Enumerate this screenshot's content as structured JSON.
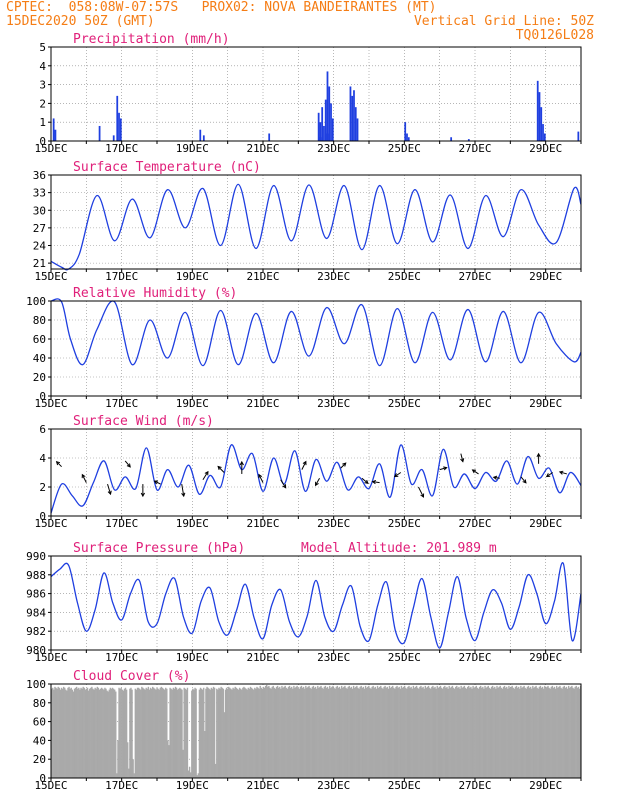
{
  "header": {
    "line1": "CPTEC:  058:08W-07:57S   PROX02: NOVA BANDEIRANTES (MT)",
    "line2": "15DEC2020 50Z (GMT)",
    "grid_note": "Vertical Grid Line: 50Z",
    "code": "TQ0126L028"
  },
  "colors": {
    "header": "#f57d15",
    "panel_title": "#e0207a",
    "series": "#1f3fe0",
    "cloud": "#a9a9a9",
    "arrow": "#000000"
  },
  "chart_data": [
    {
      "id": "precip",
      "type": "bar",
      "title": "Precipitation (mm/h)",
      "ylim": [
        0,
        5
      ],
      "yticks": [
        0,
        1,
        2,
        3,
        4,
        5
      ],
      "xlabels": [
        "15DEC",
        "17DEC",
        "19DEC",
        "21DEC",
        "23DEC",
        "25DEC",
        "27DEC",
        "29DEC"
      ],
      "bars": [
        {
          "day": 0.05,
          "value": 1.2
        },
        {
          "day": 0.1,
          "value": 0.6
        },
        {
          "day": 1.35,
          "value": 0.8
        },
        {
          "day": 1.75,
          "value": 0.3
        },
        {
          "day": 1.85,
          "value": 2.4
        },
        {
          "day": 1.9,
          "value": 1.5
        },
        {
          "day": 1.95,
          "value": 1.2
        },
        {
          "day": 4.2,
          "value": 0.6
        },
        {
          "day": 4.3,
          "value": 0.3
        },
        {
          "day": 6.15,
          "value": 0.4
        },
        {
          "day": 7.8,
          "value": 0.4
        },
        {
          "day": 7.6,
          "value": 0.2
        },
        {
          "day": 7.55,
          "value": 1.5
        },
        {
          "day": 7.6,
          "value": 1.0
        },
        {
          "day": 7.65,
          "value": 1.8
        },
        {
          "day": 7.7,
          "value": 0.8
        },
        {
          "day": 7.75,
          "value": 2.2
        },
        {
          "day": 7.8,
          "value": 3.7
        },
        {
          "day": 7.85,
          "value": 2.9
        },
        {
          "day": 7.9,
          "value": 2.0
        },
        {
          "day": 7.95,
          "value": 1.2
        },
        {
          "day": 8.45,
          "value": 2.9
        },
        {
          "day": 8.5,
          "value": 2.4
        },
        {
          "day": 8.55,
          "value": 2.7
        },
        {
          "day": 8.6,
          "value": 1.8
        },
        {
          "day": 8.65,
          "value": 1.2
        },
        {
          "day": 10.0,
          "value": 1.0
        },
        {
          "day": 10.05,
          "value": 0.4
        },
        {
          "day": 10.1,
          "value": 0.2
        },
        {
          "day": 11.3,
          "value": 0.2
        },
        {
          "day": 11.8,
          "value": 0.1
        },
        {
          "day": 13.75,
          "value": 3.2
        },
        {
          "day": 13.8,
          "value": 2.6
        },
        {
          "day": 13.85,
          "value": 1.8
        },
        {
          "day": 13.9,
          "value": 0.9
        },
        {
          "day": 13.95,
          "value": 0.4
        },
        {
          "day": 14.9,
          "value": 0.5
        }
      ]
    },
    {
      "id": "temp",
      "type": "line",
      "title": "Surface Temperature (nC)",
      "ylim": [
        20,
        36
      ],
      "yticks": [
        21,
        24,
        27,
        30,
        33,
        36
      ],
      "xlabels": [
        "15DEC",
        "17DEC",
        "19DEC",
        "21DEC",
        "23DEC",
        "25DEC",
        "27DEC",
        "29DEC"
      ],
      "x": [
        0.0,
        0.3,
        0.5,
        0.8,
        1.3,
        1.8,
        2.3,
        2.8,
        3.3,
        3.8,
        4.3,
        4.8,
        5.3,
        5.8,
        6.3,
        6.8,
        7.3,
        7.8,
        8.3,
        8.8,
        9.3,
        9.8,
        10.3,
        10.8,
        11.3,
        11.8,
        12.3,
        12.8,
        13.3,
        13.8,
        14.3,
        14.8,
        15.0
      ],
      "y": [
        21.3,
        20.3,
        20.0,
        22.5,
        32.5,
        24.8,
        31.9,
        25.3,
        33.5,
        27.0,
        33.7,
        24.0,
        34.4,
        23.5,
        34.2,
        24.8,
        34.3,
        25.2,
        34.2,
        23.3,
        34.2,
        24.3,
        33.5,
        24.6,
        32.6,
        23.5,
        32.5,
        25.5,
        33.5,
        27.5,
        24.5,
        33.7,
        31.0
      ]
    },
    {
      "id": "rh",
      "type": "line",
      "title": "Relative Humidity (%)",
      "ylim": [
        0,
        100
      ],
      "yticks": [
        0,
        20,
        40,
        60,
        80,
        100
      ],
      "xlabels": [
        "15DEC",
        "17DEC",
        "19DEC",
        "21DEC",
        "23DEC",
        "25DEC",
        "27DEC",
        "29DEC"
      ],
      "x": [
        0.0,
        0.3,
        0.55,
        0.9,
        1.3,
        1.8,
        2.3,
        2.8,
        3.3,
        3.8,
        4.3,
        4.8,
        5.3,
        5.8,
        6.3,
        6.8,
        7.3,
        7.8,
        8.3,
        8.8,
        9.3,
        9.8,
        10.3,
        10.8,
        11.3,
        11.8,
        12.3,
        12.8,
        13.3,
        13.8,
        14.3,
        14.8,
        15.0
      ],
      "y": [
        100,
        99,
        60,
        33,
        70,
        99,
        33,
        80,
        40,
        88,
        32,
        90,
        33,
        87,
        35,
        89,
        42,
        93,
        55,
        96,
        32,
        92,
        35,
        88,
        38,
        91,
        36,
        89,
        35,
        88,
        55,
        36,
        46
      ]
    },
    {
      "id": "wind",
      "type": "line",
      "title": "Surface Wind (m/s)",
      "ylim": [
        0,
        6
      ],
      "yticks": [
        0,
        2,
        4,
        6
      ],
      "xlabels": [
        "15DEC",
        "17DEC",
        "19DEC",
        "21DEC",
        "23DEC",
        "25DEC",
        "27DEC",
        "29DEC"
      ],
      "x": [
        0.0,
        0.3,
        0.6,
        0.9,
        1.2,
        1.5,
        1.8,
        2.1,
        2.4,
        2.7,
        3.0,
        3.3,
        3.6,
        3.9,
        4.2,
        4.5,
        4.8,
        5.1,
        5.4,
        5.7,
        6.0,
        6.3,
        6.6,
        6.9,
        7.2,
        7.5,
        7.8,
        8.1,
        8.4,
        8.7,
        9.0,
        9.3,
        9.6,
        9.9,
        10.2,
        10.5,
        10.8,
        11.1,
        11.4,
        11.7,
        12.0,
        12.3,
        12.6,
        12.9,
        13.2,
        13.5,
        13.8,
        14.1,
        14.4,
        14.7,
        15.0
      ],
      "y": [
        0.2,
        2.2,
        1.4,
        0.7,
        2.3,
        3.8,
        1.8,
        2.7,
        1.9,
        4.7,
        1.8,
        3.2,
        2.0,
        3.5,
        1.5,
        2.8,
        2.0,
        4.9,
        3.2,
        4.3,
        1.7,
        4.0,
        2.2,
        4.5,
        1.7,
        3.9,
        2.4,
        3.7,
        1.8,
        2.7,
        1.9,
        3.6,
        1.3,
        4.9,
        2.2,
        3.2,
        1.4,
        4.6,
        2.0,
        2.9,
        1.9,
        3.0,
        2.4,
        3.8,
        2.2,
        4.1,
        2.6,
        3.3,
        1.6,
        3.0,
        2.1
      ],
      "arrows": [
        {
          "day": 0.3,
          "value": 3.4,
          "dx": -5,
          "dy": -5
        },
        {
          "day": 1.0,
          "value": 2.3,
          "dx": -4,
          "dy": -8
        },
        {
          "day": 1.6,
          "value": 2.2,
          "dx": 3,
          "dy": 10
        },
        {
          "day": 2.1,
          "value": 3.8,
          "dx": 5,
          "dy": 6
        },
        {
          "day": 2.6,
          "value": 2.2,
          "dx": 0,
          "dy": 12
        },
        {
          "day": 3.1,
          "value": 2.2,
          "dx": -6,
          "dy": -3
        },
        {
          "day": 3.7,
          "value": 2.2,
          "dx": 2,
          "dy": 12
        },
        {
          "day": 4.3,
          "value": 2.5,
          "dx": 5,
          "dy": -8
        },
        {
          "day": 4.9,
          "value": 3.0,
          "dx": -6,
          "dy": -6
        },
        {
          "day": 5.4,
          "value": 2.9,
          "dx": 0,
          "dy": -12
        },
        {
          "day": 6.0,
          "value": 2.3,
          "dx": -4,
          "dy": -8
        },
        {
          "day": 6.5,
          "value": 2.5,
          "dx": 5,
          "dy": 8
        },
        {
          "day": 7.1,
          "value": 3.2,
          "dx": 4,
          "dy": -8
        },
        {
          "day": 7.6,
          "value": 2.6,
          "dx": -4,
          "dy": 7
        },
        {
          "day": 8.2,
          "value": 3.3,
          "dx": 5,
          "dy": -5
        },
        {
          "day": 8.8,
          "value": 2.6,
          "dx": 6,
          "dy": 5
        },
        {
          "day": 9.3,
          "value": 2.3,
          "dx": -7,
          "dy": -1
        },
        {
          "day": 9.9,
          "value": 3.0,
          "dx": -6,
          "dy": 4
        },
        {
          "day": 10.4,
          "value": 2.0,
          "dx": 5,
          "dy": 10
        },
        {
          "day": 11.0,
          "value": 3.2,
          "dx": 7,
          "dy": -2
        },
        {
          "day": 11.6,
          "value": 4.3,
          "dx": 2,
          "dy": 8
        },
        {
          "day": 12.1,
          "value": 2.9,
          "dx": -6,
          "dy": -4
        },
        {
          "day": 12.7,
          "value": 2.6,
          "dx": -6,
          "dy": -1
        },
        {
          "day": 13.3,
          "value": 2.7,
          "dx": 5,
          "dy": 6
        },
        {
          "day": 13.8,
          "value": 3.6,
          "dx": 0,
          "dy": -10
        },
        {
          "day": 14.2,
          "value": 3.0,
          "dx": -6,
          "dy": 4
        },
        {
          "day": 14.6,
          "value": 2.9,
          "dx": -7,
          "dy": -2
        }
      ]
    },
    {
      "id": "pres",
      "type": "line",
      "title": "Surface Pressure (hPa)",
      "annotation": "Model Altitude: 201.989 m",
      "ylim": [
        980,
        990
      ],
      "yticks": [
        980,
        982,
        984,
        986,
        988,
        990
      ],
      "xlabels": [
        "15DEC",
        "17DEC",
        "19DEC",
        "21DEC",
        "23DEC",
        "25DEC",
        "27DEC",
        "29DEC"
      ],
      "x": [
        0.0,
        0.25,
        0.5,
        0.75,
        1.0,
        1.25,
        1.5,
        1.75,
        2.0,
        2.25,
        2.5,
        2.75,
        3.0,
        3.25,
        3.5,
        3.75,
        4.0,
        4.25,
        4.5,
        4.75,
        5.0,
        5.25,
        5.5,
        5.75,
        6.0,
        6.25,
        6.5,
        6.75,
        7.0,
        7.25,
        7.5,
        7.75,
        8.0,
        8.25,
        8.5,
        8.75,
        9.0,
        9.25,
        9.5,
        9.75,
        10.0,
        10.25,
        10.5,
        10.75,
        11.0,
        11.25,
        11.5,
        11.75,
        12.0,
        12.25,
        12.5,
        12.75,
        13.0,
        13.25,
        13.5,
        13.75,
        14.0,
        14.25,
        14.5,
        14.75,
        15.0
      ],
      "y": [
        987.8,
        988.6,
        989.0,
        985.0,
        982.0,
        984.3,
        988.2,
        985.0,
        983.2,
        986.0,
        987.4,
        983.0,
        982.8,
        986.0,
        987.6,
        983.5,
        981.8,
        985.2,
        986.6,
        983.0,
        981.6,
        984.2,
        987.0,
        983.4,
        981.2,
        984.8,
        986.4,
        983.0,
        981.4,
        983.6,
        987.4,
        983.5,
        982.0,
        984.8,
        986.8,
        982.5,
        981.0,
        984.8,
        987.2,
        982.0,
        980.8,
        984.4,
        987.6,
        983.5,
        980.2,
        984.0,
        987.8,
        983.4,
        981.0,
        984.0,
        986.4,
        985.0,
        982.2,
        984.6,
        988.0,
        986.0,
        982.8,
        985.2,
        989.2,
        981.0,
        986.0
      ]
    },
    {
      "id": "cloud",
      "type": "bar",
      "title": "Cloud Cover (%)",
      "ylim": [
        0,
        100
      ],
      "yticks": [
        0,
        20,
        40,
        60,
        80,
        100
      ],
      "xlabels": [
        "15DEC",
        "17DEC",
        "19DEC",
        "21DEC",
        "23DEC",
        "25DEC",
        "27DEC",
        "29DEC"
      ],
      "values": [
        95,
        96,
        94,
        97,
        96,
        95,
        97,
        96,
        94,
        96,
        95,
        97,
        96,
        94,
        93,
        96,
        97,
        95,
        96,
        94,
        92,
        95,
        96,
        97,
        95,
        96,
        94,
        96,
        95,
        97,
        96,
        94,
        95,
        96,
        93,
        95,
        96,
        97,
        95,
        94,
        96,
        95,
        97,
        96,
        94,
        95,
        96,
        95,
        94,
        96,
        95,
        93,
        92,
        94,
        96,
        95,
        96,
        95,
        94,
        92,
        5,
        40,
        96,
        95,
        96,
        94,
        93,
        95,
        96,
        94,
        38,
        10,
        95,
        96,
        94,
        20,
        5,
        95,
        94,
        96,
        96,
        95,
        94,
        97,
        96,
        95,
        94,
        96,
        95,
        97,
        94,
        96,
        95,
        97,
        96,
        95,
        94,
        96,
        95,
        94,
        96,
        97,
        96,
        95,
        94,
        96,
        95,
        40,
        35,
        96,
        95,
        94,
        96,
        95,
        97,
        96,
        94,
        95,
        96,
        95,
        94,
        30,
        96,
        95,
        94,
        96,
        8,
        12,
        6,
        93,
        95,
        94,
        96,
        95,
        3,
        5,
        94,
        96,
        95,
        94,
        96,
        50,
        95,
        97,
        96,
        95,
        94,
        96,
        95,
        97,
        96,
        15,
        95,
        94,
        96,
        95,
        97,
        96,
        95,
        70,
        94,
        96,
        95,
        97,
        96,
        95,
        94,
        96,
        95,
        97,
        96,
        95,
        94,
        96,
        95,
        94,
        96,
        97,
        96,
        95,
        94,
        96,
        95,
        97,
        96,
        95,
        94,
        96,
        95,
        97,
        96,
        95,
        98,
        96,
        95,
        97,
        96,
        98,
        99,
        97,
        98,
        96,
        95,
        97,
        98,
        96,
        95,
        97,
        98,
        96,
        97,
        95,
        98,
        96,
        97,
        98,
        96,
        95,
        97,
        98,
        96,
        97,
        95,
        98,
        96,
        97,
        98,
        96,
        95,
        97,
        98,
        96,
        97,
        95,
        98,
        96,
        97,
        98,
        96,
        95,
        97,
        98,
        96,
        97,
        95,
        98,
        96,
        97,
        98,
        96,
        95,
        97,
        98,
        96,
        97,
        95,
        98,
        96,
        97,
        98,
        96,
        95,
        97,
        98,
        96,
        97,
        95,
        98,
        96,
        97,
        98,
        96,
        95,
        97,
        98,
        96,
        97,
        95,
        98,
        96,
        97,
        98,
        96,
        95,
        97,
        98,
        96,
        97,
        95,
        98,
        96,
        97,
        98,
        96,
        95,
        97,
        98,
        96,
        97,
        95,
        98,
        96,
        97,
        98,
        96,
        95,
        97,
        98,
        96,
        97,
        95,
        98,
        96,
        97,
        98,
        96,
        95,
        97,
        98,
        96,
        97,
        95,
        98,
        96,
        97,
        98,
        96,
        95,
        97,
        98,
        96,
        97,
        95,
        98,
        96,
        97,
        98,
        96,
        95,
        97,
        98,
        96,
        97,
        95,
        98,
        96,
        97,
        98,
        96,
        95,
        97,
        98,
        96,
        97,
        95,
        98,
        96,
        97,
        98,
        96,
        95,
        97,
        98,
        96,
        97,
        95,
        98,
        96,
        97,
        98,
        96,
        95,
        97,
        98,
        96,
        97,
        95,
        98,
        96,
        97,
        98,
        96,
        95,
        97,
        98,
        96,
        97,
        95,
        98,
        96,
        97,
        98,
        96,
        95,
        97,
        98,
        96,
        97,
        95,
        98,
        96,
        97,
        98,
        96,
        95,
        97,
        98,
        96,
        97,
        95,
        98,
        96,
        97,
        98,
        96,
        95,
        97,
        98,
        96,
        97,
        95,
        98,
        96,
        97,
        98,
        96,
        95,
        97,
        98,
        96,
        97,
        95,
        98,
        96,
        97,
        98,
        96,
        95,
        97,
        98,
        96,
        97,
        95,
        98,
        96,
        97,
        98,
        96,
        95,
        97,
        98,
        96,
        97,
        95,
        98,
        96,
        97,
        98,
        96,
        95,
        97,
        98,
        96,
        97,
        95,
        98,
        96,
        97,
        98,
        96,
        95,
        97,
        98,
        96,
        97,
        95,
        98,
        96,
        97,
        98,
        96,
        95,
        97,
        98,
        96,
        97,
        95,
        98
      ]
    }
  ]
}
